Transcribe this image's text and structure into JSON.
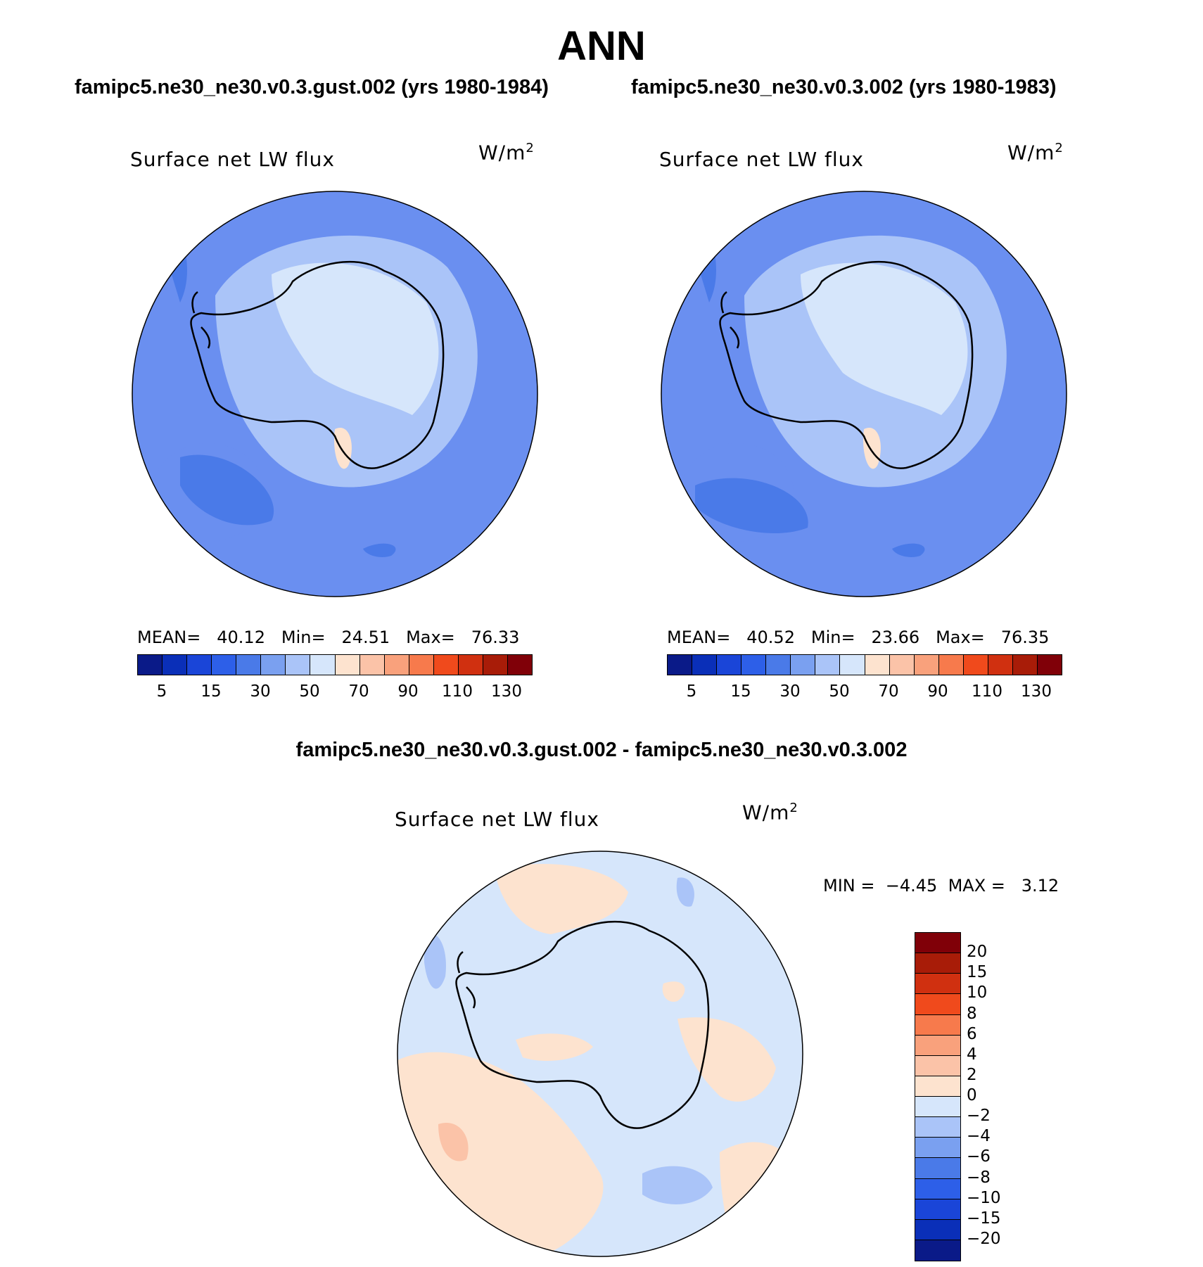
{
  "title": "ANN",
  "panels": [
    {
      "subtitle": "famipc5.ne30_ne30.v0.3.gust.002 (yrs 1980-1984)",
      "variable": "Surface net LW flux",
      "units": "W/m",
      "units_exp": "2",
      "mean_label": "MEAN=",
      "mean": "40.12",
      "min_label": "Min=",
      "min": "24.51",
      "max_label": "Max=",
      "max": "76.33"
    },
    {
      "subtitle": "famipc5.ne30_ne30.v0.3.002 (yrs 1980-1983)",
      "variable": "Surface net LW flux",
      "units": "W/m",
      "units_exp": "2",
      "mean_label": "MEAN=",
      "mean": "40.52",
      "min_label": "Min=",
      "min": "23.66",
      "max_label": "Max=",
      "max": "76.35"
    }
  ],
  "diff": {
    "subtitle": "famipc5.ne30_ne30.v0.3.gust.002 - famipc5.ne30_ne30.v0.3.002",
    "variable": "Surface net LW flux",
    "units": "W/m",
    "units_exp": "2",
    "min_label": "MIN =",
    "min": "−4.45",
    "max_label": "MAX =",
    "max": "3.12"
  },
  "colorbar_abs": {
    "colors": [
      "#0a1a88",
      "#0a2fb8",
      "#1a45d8",
      "#2d5fe8",
      "#4a7ae8",
      "#7aa0f0",
      "#aac4f8",
      "#d6e6fb",
      "#fde3cf",
      "#fbc3a8",
      "#f9a17c",
      "#f77a4c",
      "#f04a1c",
      "#d03010",
      "#a81c08",
      "#800008"
    ],
    "ticks": [
      "5",
      "15",
      "30",
      "50",
      "70",
      "90",
      "110",
      "130"
    ]
  },
  "colorbar_diff": {
    "colors": [
      "#800008",
      "#a81c08",
      "#d03010",
      "#f04a1c",
      "#f77a4c",
      "#f9a17c",
      "#fbc3a8",
      "#fde3cf",
      "#d6e6fb",
      "#aac4f8",
      "#7aa0f0",
      "#4a7ae8",
      "#2d5fe8",
      "#1a45d8",
      "#0a2fb8",
      "#0a1a88"
    ],
    "ticks": [
      "20",
      "15",
      "10",
      "8",
      "6",
      "4",
      "2",
      "0",
      "−2",
      "−4",
      "−6",
      "−8",
      "−10",
      "−15",
      "−20"
    ]
  }
}
